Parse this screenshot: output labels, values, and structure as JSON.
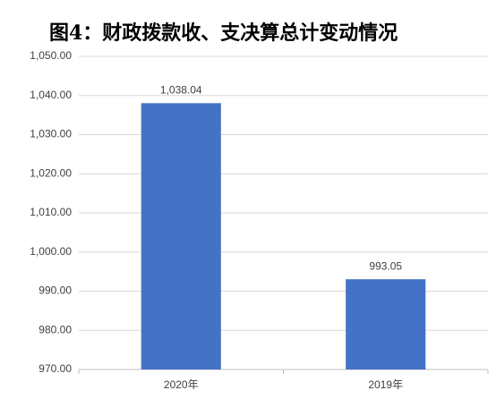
{
  "chart_data": {
    "type": "bar",
    "title": "图4：财政拨款收、支决算总计变动情况",
    "categories": [
      "2020年",
      "2019年"
    ],
    "values": [
      1038.04,
      993.05
    ],
    "value_labels": [
      "1,038.04",
      "993.05"
    ],
    "color": "#4472c4",
    "ylim": [
      970,
      1050
    ],
    "yticks": [
      {
        "value": 970,
        "label": "970.00"
      },
      {
        "value": 980,
        "label": "980.00"
      },
      {
        "value": 990,
        "label": "990.00"
      },
      {
        "value": 1000,
        "label": "1,000.00"
      },
      {
        "value": 1010,
        "label": "1,010.00"
      },
      {
        "value": 1020,
        "label": "1,020.00"
      },
      {
        "value": 1030,
        "label": "1,030.00"
      },
      {
        "value": 1040,
        "label": "1,040.00"
      },
      {
        "value": 1050,
        "label": "1,050.00"
      }
    ],
    "grid": true
  }
}
